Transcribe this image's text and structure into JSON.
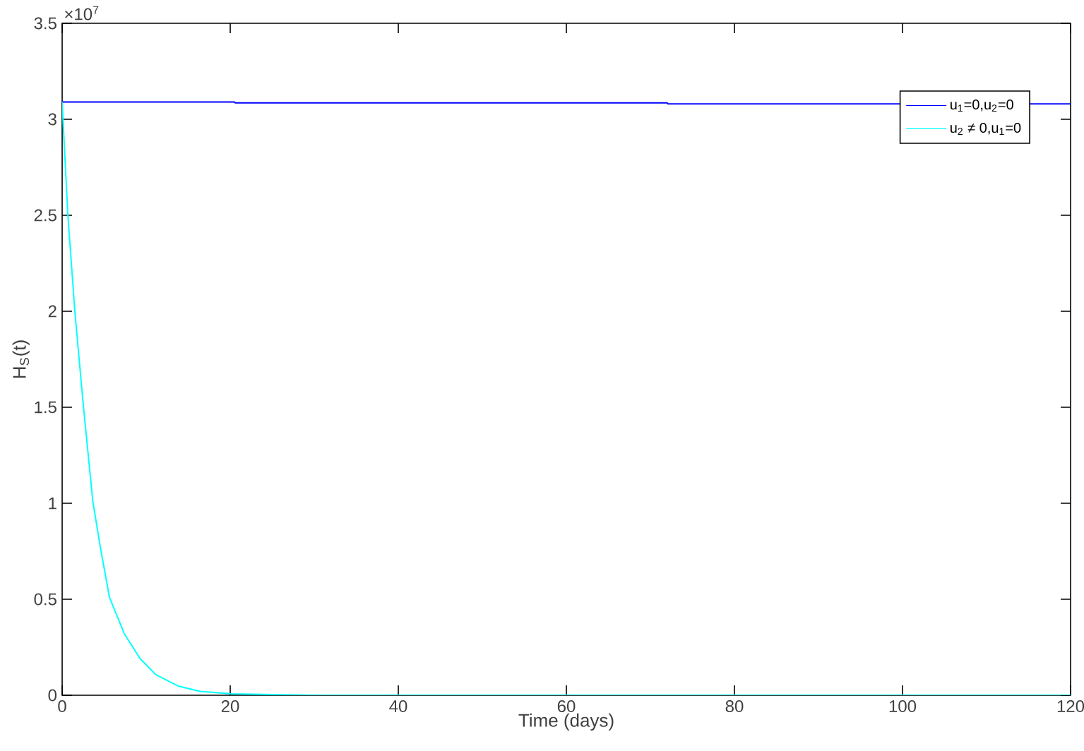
{
  "chart_data": {
    "type": "line",
    "xlabel": "Time (days)",
    "ylabel": "H$_{S}$(t)",
    "annotations": [
      "×10$^{7}$"
    ],
    "xlim": [
      0,
      120
    ],
    "xticks": [
      0,
      20,
      40,
      60,
      80,
      100,
      120
    ],
    "ylim": [
      0,
      3.5
    ],
    "yticks": [
      0,
      0.5,
      1,
      1.5,
      2,
      2.5,
      3,
      3.5
    ],
    "grid": false,
    "legend": "top right",
    "line_style": "solid",
    "marker": "none",
    "series": [
      {
        "name": "u$_{1}$=0,u$_{2}$=0",
        "color": "#0000ff",
        "x": [
          0,
          20.5,
          20.6,
          72,
          72.1,
          120
        ],
        "values": [
          3.09,
          3.09,
          3.085,
          3.085,
          3.08,
          3.08
        ]
      },
      {
        "name": "u$_{2}$ ≠ 0,u$_{1}$=0",
        "color": "#00ffff",
        "x": [
          0,
          0.31,
          0.59,
          0.65,
          1.51,
          2.52,
          3.65,
          4.59,
          5.63,
          7.4,
          9.28,
          11.15,
          13.8,
          16.4,
          20.2,
          30,
          60,
          90,
          120
        ],
        "values": [
          3.09,
          2.82,
          2.58,
          2.52,
          2.0,
          1.51,
          1.01,
          0.76,
          0.51,
          0.32,
          0.19,
          0.107,
          0.048,
          0.02,
          0.007,
          0,
          0,
          0,
          0
        ]
      }
    ]
  }
}
